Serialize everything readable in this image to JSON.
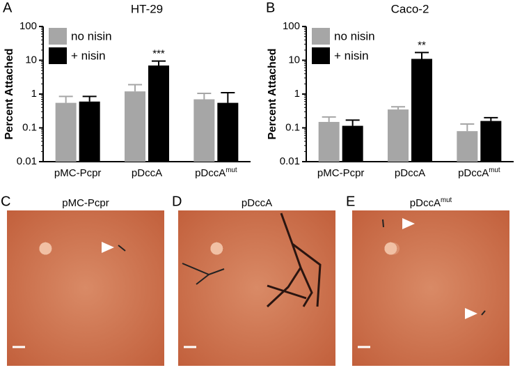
{
  "chart_data": [
    {
      "type": "bar",
      "panel_label": "A",
      "title": "HT-29",
      "y_label": "Percent Attached",
      "categories": [
        "pMC-Pcpr",
        "pDccA",
        "pDccA"
      ],
      "category_superscripts": [
        null,
        null,
        "mut"
      ],
      "series": [
        {
          "name": "no nisin",
          "color": "#a6a6a6",
          "values": [
            0.55,
            1.2,
            0.7
          ],
          "errors": [
            0.3,
            0.7,
            0.35
          ]
        },
        {
          "name": "+ nisin",
          "color": "#000000",
          "values": [
            0.6,
            7,
            0.55
          ],
          "errors": [
            0.25,
            2.5,
            0.55
          ]
        }
      ],
      "annotation": {
        "text": "***",
        "series": 1,
        "index": 1
      },
      "ylim": [
        0.01,
        100
      ],
      "yticks": [
        0.01,
        0.1,
        1,
        10,
        100
      ],
      "log_scale": true,
      "legend": "top-left"
    },
    {
      "type": "bar",
      "panel_label": "B",
      "title": "Caco-2",
      "y_label": "Percent Attached",
      "categories": [
        "pMC-Pcpr",
        "pDccA",
        "pDccA"
      ],
      "category_superscripts": [
        null,
        null,
        "mut"
      ],
      "series": [
        {
          "name": "no nisin",
          "color": "#a6a6a6",
          "values": [
            0.15,
            0.35,
            0.08
          ],
          "errors": [
            0.06,
            0.07,
            0.05
          ]
        },
        {
          "name": "+ nisin",
          "color": "#000000",
          "values": [
            0.115,
            11,
            0.16
          ],
          "errors": [
            0.055,
            6,
            0.04
          ]
        }
      ],
      "annotation": {
        "text": "**",
        "series": 1,
        "index": 1
      },
      "ylim": [
        0.01,
        100
      ],
      "yticks": [
        0.01,
        0.1,
        1,
        10,
        100
      ],
      "log_scale": true,
      "legend": "top-left"
    }
  ],
  "images": [
    {
      "label": "C",
      "title": "pMC-Pcpr",
      "superscript": null
    },
    {
      "label": "D",
      "title": "pDccA",
      "superscript": null
    },
    {
      "label": "E",
      "title": "pDccA",
      "superscript": "mut"
    }
  ]
}
